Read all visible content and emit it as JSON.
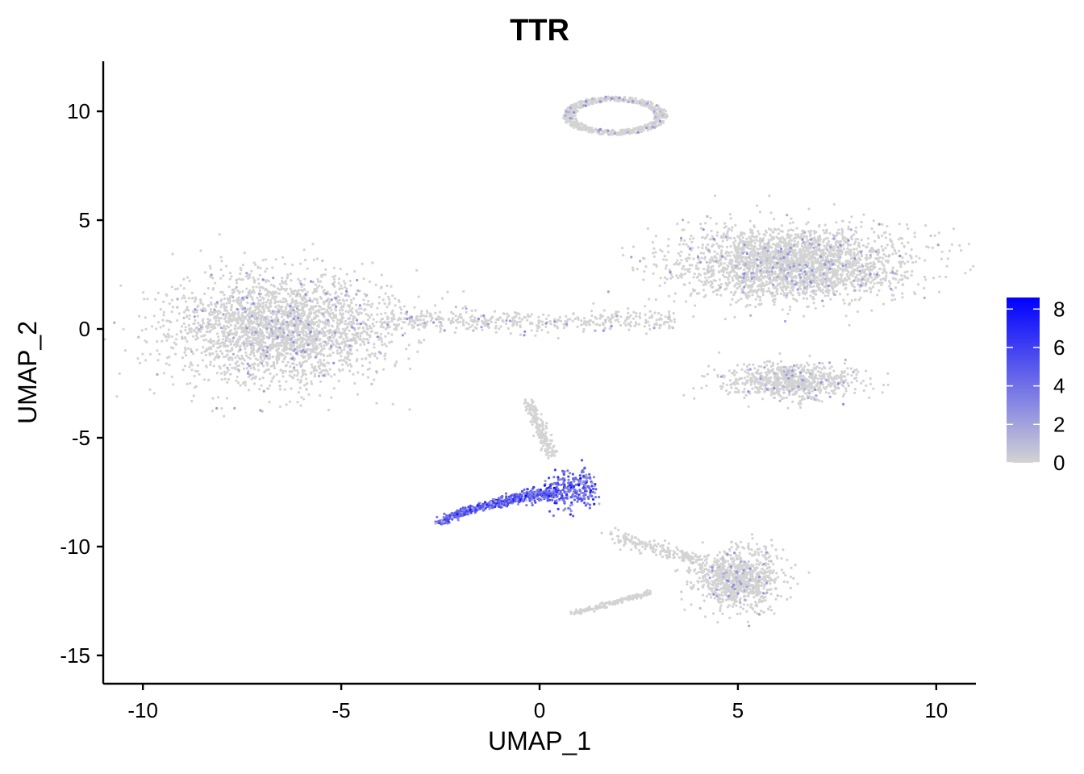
{
  "chart_data": {
    "type": "scatter",
    "title": "TTR",
    "xlabel": "UMAP_1",
    "ylabel": "UMAP_2",
    "xlim": [
      -11.0,
      11.0
    ],
    "ylim": [
      -16.3,
      12.3
    ],
    "xticks": [
      -10,
      -5,
      0,
      5,
      10
    ],
    "yticks": [
      -15,
      -10,
      -5,
      0,
      5,
      10
    ],
    "xtick_labels": [
      "-10",
      "-5",
      "0",
      "5",
      "10"
    ],
    "ytick_labels": [
      "-15",
      "-10",
      "-5",
      "0",
      "5",
      "10"
    ],
    "grid": false,
    "point_color_low": "#D3D3D3",
    "point_color_high": "#0000FF",
    "legend": {
      "placement": "right",
      "range": [
        0,
        8.6
      ],
      "ticks": [
        0,
        2,
        4,
        6,
        8
      ],
      "tick_labels": [
        "0",
        "2",
        "4",
        "6",
        "8"
      ]
    },
    "clusters": [
      {
        "name": "top-ring",
        "cx": 1.9,
        "cy": 9.8,
        "sx": 1.2,
        "sy": 0.55,
        "n": 700,
        "expr_mean": 0.2
      },
      {
        "name": "left-blob",
        "cx": -6.5,
        "cy": 0.0,
        "sx": 1.8,
        "sy": 1.6,
        "n": 2600,
        "expr_mean": 0.3
      },
      {
        "name": "bridge",
        "cx": -1.0,
        "cy": 0.3,
        "sx": 1.6,
        "sy": 0.25,
        "n": 450,
        "expr_mean": 0.1
      },
      {
        "name": "right-blob",
        "cx": 6.4,
        "cy": 3.0,
        "sx": 1.9,
        "sy": 1.1,
        "n": 2600,
        "expr_mean": 0.3
      },
      {
        "name": "right-lower",
        "cx": 6.3,
        "cy": -2.4,
        "sx": 1.1,
        "sy": 0.55,
        "n": 750,
        "expr_mean": 0.2
      },
      {
        "name": "arc-high",
        "cx": 0.3,
        "cy": -7.7,
        "sx": 0.9,
        "sy": 0.5,
        "n": 900,
        "expr_mean": 4.5
      },
      {
        "name": "bottom-right",
        "cx": 5.0,
        "cy": -11.5,
        "sx": 0.7,
        "sy": 0.9,
        "n": 900,
        "expr_mean": 0.2
      }
    ]
  }
}
